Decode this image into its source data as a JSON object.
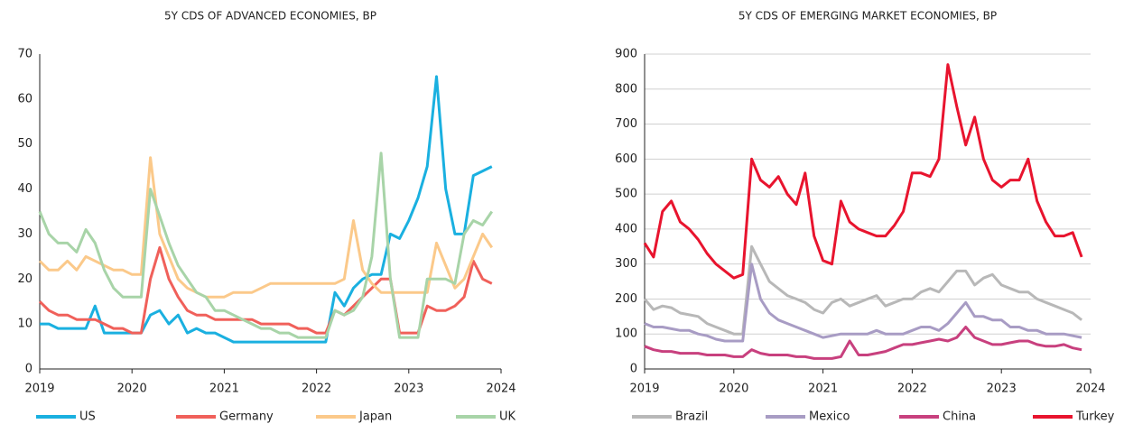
{
  "chart_data": [
    {
      "type": "line",
      "title": "5Y CDS OF ADVANCED ECONOMIES, BP",
      "x": [
        2019.0,
        2019.1,
        2019.2,
        2019.3,
        2019.4,
        2019.5,
        2019.6,
        2019.7,
        2019.8,
        2019.9,
        2020.0,
        2020.1,
        2020.2,
        2020.3,
        2020.4,
        2020.5,
        2020.6,
        2020.7,
        2020.8,
        2020.9,
        2021.0,
        2021.1,
        2021.2,
        2021.3,
        2021.4,
        2021.5,
        2021.6,
        2021.7,
        2021.8,
        2021.9,
        2022.0,
        2022.1,
        2022.2,
        2022.3,
        2022.4,
        2022.5,
        2022.6,
        2022.7,
        2022.8,
        2022.9,
        2023.0,
        2023.1,
        2023.2,
        2023.3,
        2023.4,
        2023.5,
        2023.6,
        2023.7,
        2023.8,
        2023.9
      ],
      "xlim": [
        2019,
        2024
      ],
      "xticks": [
        2019,
        2020,
        2021,
        2022,
        2023,
        2024
      ],
      "ylim": [
        0,
        70
      ],
      "yticks": [
        0,
        10,
        20,
        30,
        40,
        50,
        60,
        70
      ],
      "grid": false,
      "series": [
        {
          "name": "US",
          "color": "#1ab0e0",
          "values": [
            10,
            10,
            9,
            9,
            9,
            9,
            14,
            8,
            8,
            8,
            8,
            8,
            12,
            13,
            10,
            12,
            8,
            9,
            8,
            8,
            7,
            6,
            6,
            6,
            6,
            6,
            6,
            6,
            6,
            6,
            6,
            6,
            17,
            14,
            18,
            20,
            21,
            21,
            30,
            29,
            33,
            38,
            45,
            65,
            40,
            30,
            30,
            43,
            44,
            45
          ]
        },
        {
          "name": "Germany",
          "color": "#f0605a",
          "values": [
            15,
            13,
            12,
            12,
            11,
            11,
            11,
            10,
            9,
            9,
            8,
            8,
            20,
            27,
            20,
            16,
            13,
            12,
            12,
            11,
            11,
            11,
            11,
            11,
            10,
            10,
            10,
            10,
            9,
            9,
            8,
            8,
            13,
            12,
            14,
            16,
            18,
            20,
            20,
            8,
            8,
            8,
            14,
            13,
            13,
            14,
            16,
            24,
            20,
            19
          ]
        },
        {
          "name": "Japan",
          "color": "#fbc98a",
          "values": [
            24,
            22,
            22,
            24,
            22,
            25,
            24,
            23,
            22,
            22,
            21,
            21,
            47,
            30,
            25,
            20,
            18,
            17,
            16,
            16,
            16,
            17,
            17,
            17,
            18,
            19,
            19,
            19,
            19,
            19,
            19,
            19,
            19,
            20,
            33,
            22,
            19,
            17,
            17,
            17,
            17,
            17,
            17,
            28,
            23,
            18,
            20,
            25,
            30,
            27
          ]
        },
        {
          "name": "UK",
          "color": "#a8d4a8",
          "values": [
            35,
            30,
            28,
            28,
            26,
            31,
            28,
            22,
            18,
            16,
            16,
            16,
            40,
            34,
            28,
            23,
            20,
            17,
            16,
            13,
            13,
            12,
            11,
            10,
            9,
            9,
            8,
            8,
            7,
            7,
            7,
            7,
            13,
            12,
            13,
            16,
            25,
            48,
            20,
            7,
            7,
            7,
            20,
            20,
            20,
            19,
            30,
            33,
            32,
            35
          ]
        }
      ]
    },
    {
      "type": "line",
      "title": "5Y CDS OF EMERGING MARKET ECONOMIES, BP",
      "x": [
        2019.0,
        2019.1,
        2019.2,
        2019.3,
        2019.4,
        2019.5,
        2019.6,
        2019.7,
        2019.8,
        2019.9,
        2020.0,
        2020.1,
        2020.2,
        2020.3,
        2020.4,
        2020.5,
        2020.6,
        2020.7,
        2020.8,
        2020.9,
        2021.0,
        2021.1,
        2021.2,
        2021.3,
        2021.4,
        2021.5,
        2021.6,
        2021.7,
        2021.8,
        2021.9,
        2022.0,
        2022.1,
        2022.2,
        2022.3,
        2022.4,
        2022.5,
        2022.6,
        2022.7,
        2022.8,
        2022.9,
        2023.0,
        2023.1,
        2023.2,
        2023.3,
        2023.4,
        2023.5,
        2023.6,
        2023.7,
        2023.8,
        2023.9
      ],
      "xlim": [
        2019,
        2024
      ],
      "xticks": [
        2019,
        2020,
        2021,
        2022,
        2023,
        2024
      ],
      "ylim": [
        0,
        900
      ],
      "yticks": [
        0,
        100,
        200,
        300,
        400,
        500,
        600,
        700,
        800,
        900
      ],
      "grid": true,
      "series": [
        {
          "name": "Brazil",
          "color": "#b8b8b8",
          "values": [
            200,
            170,
            180,
            175,
            160,
            155,
            150,
            130,
            120,
            110,
            100,
            100,
            350,
            300,
            250,
            230,
            210,
            200,
            190,
            170,
            160,
            190,
            200,
            180,
            190,
            200,
            210,
            180,
            190,
            200,
            200,
            220,
            230,
            220,
            250,
            280,
            280,
            240,
            260,
            270,
            240,
            230,
            220,
            220,
            200,
            190,
            180,
            170,
            160,
            140
          ]
        },
        {
          "name": "Mexico",
          "color": "#a89cc4",
          "values": [
            130,
            120,
            120,
            115,
            110,
            110,
            100,
            95,
            85,
            80,
            80,
            80,
            300,
            200,
            160,
            140,
            130,
            120,
            110,
            100,
            90,
            95,
            100,
            100,
            100,
            100,
            110,
            100,
            100,
            100,
            110,
            120,
            120,
            110,
            130,
            160,
            190,
            150,
            150,
            140,
            140,
            120,
            120,
            110,
            110,
            100,
            100,
            100,
            95,
            90
          ]
        },
        {
          "name": "China",
          "color": "#c8407e",
          "values": [
            65,
            55,
            50,
            50,
            45,
            45,
            45,
            40,
            40,
            40,
            35,
            35,
            55,
            45,
            40,
            40,
            40,
            35,
            35,
            30,
            30,
            30,
            35,
            80,
            40,
            40,
            45,
            50,
            60,
            70,
            70,
            75,
            80,
            85,
            80,
            90,
            120,
            90,
            80,
            70,
            70,
            75,
            80,
            80,
            70,
            65,
            65,
            70,
            60,
            55
          ]
        },
        {
          "name": "Turkey",
          "color": "#e8142e",
          "values": [
            360,
            320,
            450,
            480,
            420,
            400,
            370,
            330,
            300,
            280,
            260,
            270,
            600,
            540,
            520,
            550,
            500,
            470,
            560,
            380,
            310,
            300,
            480,
            420,
            400,
            390,
            380,
            380,
            410,
            450,
            560,
            560,
            550,
            600,
            870,
            750,
            640,
            720,
            600,
            540,
            520,
            540,
            540,
            600,
            480,
            420,
            380,
            380,
            390,
            320
          ]
        }
      ]
    }
  ]
}
